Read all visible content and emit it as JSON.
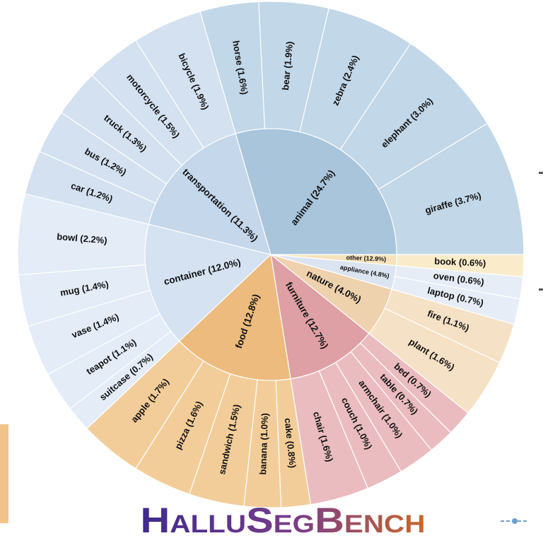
{
  "chart_data": {
    "type": "sunburst",
    "groups": [
      {
        "label": "other (12.9%)",
        "value": 12.9,
        "color": "#f7e3bb",
        "leaf_color": "#faecca",
        "children": {
          "labels": [
            "book (0.6%)"
          ],
          "values": [
            0.6
          ]
        }
      },
      {
        "label": "appliance (4.8%)",
        "value": 4.8,
        "color": "#dbe5f1",
        "leaf_color": "#e6edf6",
        "children": {
          "labels": [
            "oven (0.6%)",
            "laptop (0.7%)"
          ],
          "values": [
            0.6,
            0.7
          ]
        }
      },
      {
        "label": "nature (4.0%)",
        "value": 4.0,
        "color": "#eed1ad",
        "leaf_color": "#f5e1c5",
        "children": {
          "labels": [
            "fire (1.1%)",
            "plant (1.6%)"
          ],
          "values": [
            1.1,
            1.6
          ]
        }
      },
      {
        "label": "furniture (12.7%)",
        "value": 12.7,
        "color": "#dea0a4",
        "leaf_color": "#eabcbf",
        "children": {
          "labels": [
            "bed (0.7%)",
            "table (0.7%)",
            "armchair (1.0%)",
            "couch (1.0%)",
            "chair (1.6%)"
          ],
          "values": [
            0.7,
            0.7,
            1.0,
            1.0,
            1.6
          ]
        }
      },
      {
        "label": "food (12.8%)",
        "value": 12.8,
        "color": "#edbb7d",
        "leaf_color": "#f3cd99",
        "children": {
          "labels": [
            "cake (0.8%)",
            "banana (1.0%)",
            "sandwich (1.5%)",
            "pizza (1.6%)",
            "apple (1.7%)"
          ],
          "values": [
            0.8,
            1.0,
            1.5,
            1.6,
            1.7
          ]
        }
      },
      {
        "label": "container (12.0%)",
        "value": 12.0,
        "color": "#d4e2f2",
        "leaf_color": "#e3ecf7",
        "children": {
          "labels": [
            "suitcase (0.7%)",
            "teapot (1.1%)",
            "vase (1.4%)",
            "mug (1.4%)",
            "bowl (2.2%)"
          ],
          "values": [
            0.7,
            1.1,
            1.4,
            1.4,
            2.2
          ]
        }
      },
      {
        "label": "transportation (11.3%)",
        "value": 11.3,
        "color": "#c5d7eb",
        "leaf_color": "#d3e1f0",
        "children": {
          "labels": [
            "car (1.2%)",
            "bus (1.2%)",
            "truck (1.3%)",
            "motorcycle (1.5%)",
            "bicycle (1.9%)"
          ],
          "values": [
            1.2,
            1.2,
            1.3,
            1.5,
            1.9
          ]
        }
      },
      {
        "label": "animal (24.7%)",
        "value": 24.7,
        "color": "#a8c5dc",
        "leaf_color": "#c2d7e7",
        "children": {
          "labels": [
            "horse (1.6%)",
            "bear (1.9%)",
            "zebra (2.4%)",
            "elephant (3.0%)",
            "giraffe (3.7%)"
          ],
          "values": [
            1.6,
            1.9,
            2.4,
            3.0,
            3.7
          ]
        }
      }
    ]
  },
  "logo": "HalluSegBench"
}
